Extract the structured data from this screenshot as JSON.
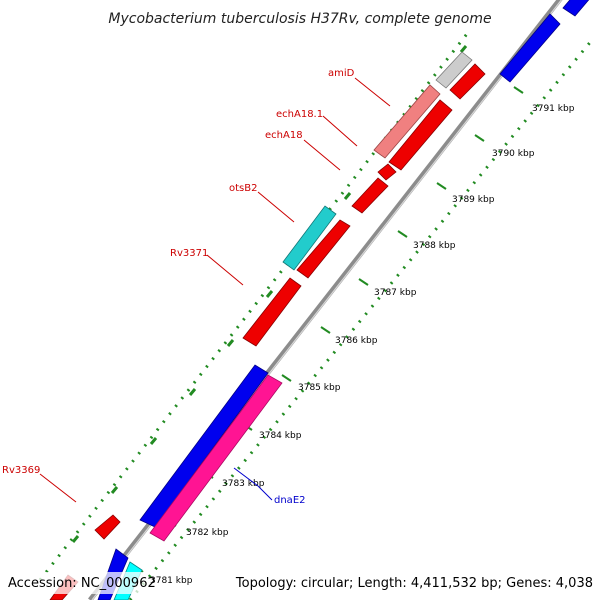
{
  "title": "Mycobacterium tuberculosis H37Rv, complete genome",
  "footer": {
    "accession": "Accession: NC_000962",
    "topology": "Topology: circular; Length: 4,411,532 bp; Genes: 4,038"
  },
  "colors": {
    "backbone": "#8c8c8c",
    "ticks": "#228b22",
    "label_red": "#cc0000",
    "label_blue": "#0000cc"
  },
  "ticks": [
    {
      "label": "3781 kbp"
    },
    {
      "label": "3782 kbp"
    },
    {
      "label": "3783 kbp"
    },
    {
      "label": "3784 kbp"
    },
    {
      "label": "3785 kbp"
    },
    {
      "label": "3786 kbp"
    },
    {
      "label": "3787 kbp"
    },
    {
      "label": "3788 kbp"
    },
    {
      "label": "3789 kbp"
    },
    {
      "label": "3790 kbp"
    },
    {
      "label": "3791 kbp"
    }
  ],
  "labels": {
    "amiD": "amiD",
    "echA18_1": "echA18.1",
    "echA18": "echA18",
    "otsB2": "otsB2",
    "Rv3371": "Rv3371",
    "Rv3369": "Rv3369",
    "dnaE2": "dnaE2"
  }
}
